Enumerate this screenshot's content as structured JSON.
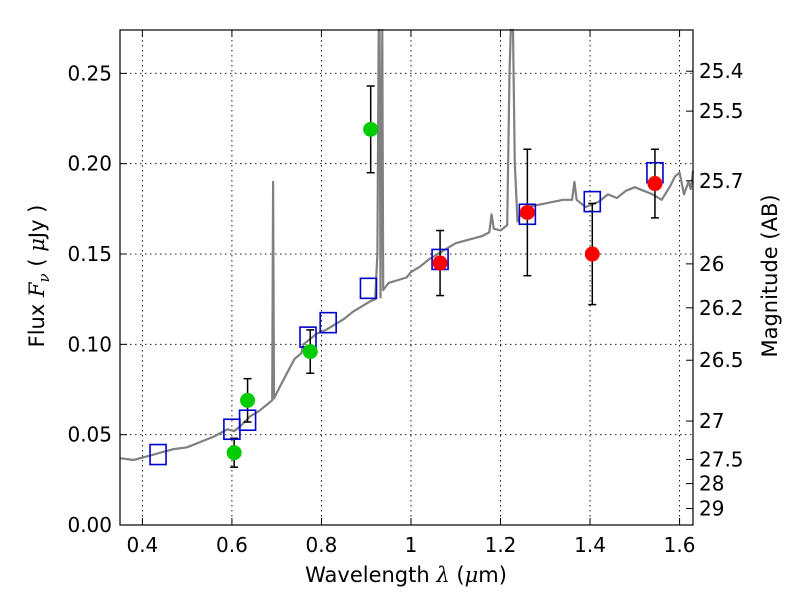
{
  "chart_data": {
    "type": "scatter",
    "xlabel": "Wavelength",
    "xlabel_symbol": "λ",
    "xlabel_unit_open": "(",
    "xlabel_unit_mu": "μ",
    "xlabel_unit_rest": "m)",
    "ylabel_prefix": "Flux",
    "ylabel_symbol": "F",
    "ylabel_subscript": "ν",
    "ylabel_unit_open": "(",
    "ylabel_unit_mu": "μ",
    "ylabel_unit_rest": "Jy )",
    "y2label": "Magnitude (AB)",
    "xlim": [
      0.35,
      1.63
    ],
    "ylim": [
      0.0,
      0.274
    ],
    "grid": true,
    "grid_style": "dotted",
    "x_ticks": [
      {
        "value": 0.4,
        "label": "0.4"
      },
      {
        "value": 0.6,
        "label": "0.6"
      },
      {
        "value": 0.8,
        "label": "0.8"
      },
      {
        "value": 1.0,
        "label": "1"
      },
      {
        "value": 1.2,
        "label": "1.2"
      },
      {
        "value": 1.4,
        "label": "1.4"
      },
      {
        "value": 1.6,
        "label": "1.6"
      }
    ],
    "y_ticks": [
      {
        "value": 0.0,
        "label": "0.00"
      },
      {
        "value": 0.05,
        "label": "0.05"
      },
      {
        "value": 0.1,
        "label": "0.10"
      },
      {
        "value": 0.15,
        "label": "0.15"
      },
      {
        "value": 0.2,
        "label": "0.20"
      },
      {
        "value": 0.25,
        "label": "0.25"
      }
    ],
    "mag_ticks": [
      {
        "value": 25.4,
        "label": "25.4"
      },
      {
        "value": 25.5,
        "label": "25.5"
      },
      {
        "value": 25.7,
        "label": "25.7"
      },
      {
        "value": 26.0,
        "label": "26"
      },
      {
        "value": 26.2,
        "label": "26.2"
      },
      {
        "value": 26.5,
        "label": "26.5"
      },
      {
        "value": 27.0,
        "label": "27"
      },
      {
        "value": 27.5,
        "label": "27.5"
      },
      {
        "value": 28.0,
        "label": "28"
      },
      {
        "value": 29.0,
        "label": "29"
      }
    ],
    "series": [
      {
        "name": "model_spectrum",
        "kind": "line",
        "color": "#808080",
        "x": [
          0.35,
          0.38,
          0.41,
          0.44,
          0.47,
          0.5,
          0.53,
          0.56,
          0.59,
          0.605,
          0.62,
          0.64,
          0.66,
          0.68,
          0.69,
          0.692,
          0.694,
          0.698,
          0.71,
          0.74,
          0.755,
          0.76,
          0.77,
          0.79,
          0.81,
          0.83,
          0.85,
          0.87,
          0.89,
          0.91,
          0.92,
          0.925,
          0.928,
          0.93,
          0.932,
          0.936,
          0.938,
          0.95,
          0.99,
          1.0,
          1.02,
          1.04,
          1.06,
          1.08,
          1.1,
          1.13,
          1.16,
          1.175,
          1.18,
          1.185,
          1.2,
          1.215,
          1.22,
          1.223,
          1.228,
          1.232,
          1.238,
          1.245,
          1.26,
          1.3,
          1.34,
          1.36,
          1.365,
          1.37,
          1.39,
          1.42,
          1.44,
          1.46,
          1.48,
          1.5,
          1.52,
          1.54,
          1.56,
          1.58,
          1.59,
          1.6,
          1.61,
          1.62,
          1.625,
          1.63
        ],
        "y": [
          0.037,
          0.036,
          0.038,
          0.04,
          0.042,
          0.043,
          0.046,
          0.049,
          0.053,
          0.052,
          0.055,
          0.06,
          0.063,
          0.067,
          0.069,
          0.19,
          0.07,
          0.072,
          0.078,
          0.092,
          0.095,
          0.1,
          0.102,
          0.106,
          0.108,
          0.111,
          0.114,
          0.118,
          0.121,
          0.124,
          0.125,
          0.15,
          0.274,
          0.274,
          0.126,
          0.274,
          0.13,
          0.134,
          0.137,
          0.14,
          0.143,
          0.147,
          0.15,
          0.153,
          0.156,
          0.158,
          0.16,
          0.162,
          0.172,
          0.164,
          0.163,
          0.166,
          0.25,
          0.274,
          0.274,
          0.2,
          0.168,
          0.172,
          0.176,
          0.178,
          0.18,
          0.18,
          0.19,
          0.18,
          0.176,
          0.179,
          0.183,
          0.181,
          0.185,
          0.187,
          0.185,
          0.183,
          0.18,
          0.188,
          0.193,
          0.195,
          0.183,
          0.19,
          0.186,
          0.196
        ]
      },
      {
        "name": "model_photometry",
        "kind": "open_square",
        "color": "#0000cc",
        "x": [
          0.435,
          0.6,
          0.635,
          0.77,
          0.815,
          0.905,
          1.065,
          1.26,
          1.405,
          1.545
        ],
        "y": [
          0.039,
          0.053,
          0.058,
          0.104,
          0.112,
          0.131,
          0.147,
          0.172,
          0.179,
          0.195
        ]
      },
      {
        "name": "optical_observed",
        "kind": "filled_circle",
        "color": "#00cc00",
        "x": [
          0.605,
          0.635,
          0.775,
          0.91
        ],
        "y": [
          0.04,
          0.069,
          0.096,
          0.219
        ],
        "err": [
          0.008,
          0.012,
          0.012,
          0.024
        ]
      },
      {
        "name": "nir_observed",
        "kind": "filled_circle",
        "color": "#ff0000",
        "x": [
          1.065,
          1.26,
          1.405,
          1.545
        ],
        "y": [
          0.145,
          0.173,
          0.15,
          0.189
        ],
        "err": [
          0.018,
          0.035,
          0.028,
          0.019
        ]
      }
    ]
  }
}
